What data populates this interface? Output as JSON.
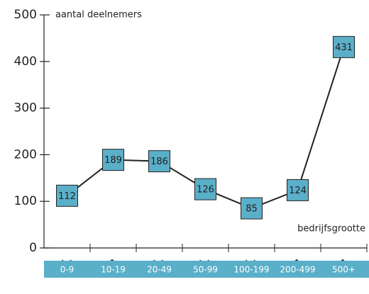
{
  "chart_data": {
    "type": "line",
    "y_label": "aantal deelnemers",
    "x_label": "bedrijfsgrootte",
    "categories": [
      "0-9",
      "10-19",
      "20-49",
      "50-99",
      "100-199",
      "200-499",
      "500+"
    ],
    "values": [
      112,
      189,
      186,
      126,
      85,
      124,
      431
    ],
    "color": "#222222",
    "marker_color": "#5aafc9",
    "band_color": "#5aafc9",
    "ylim": [
      0,
      500
    ],
    "yticks": [
      0,
      100,
      200,
      300,
      400,
      500
    ]
  }
}
